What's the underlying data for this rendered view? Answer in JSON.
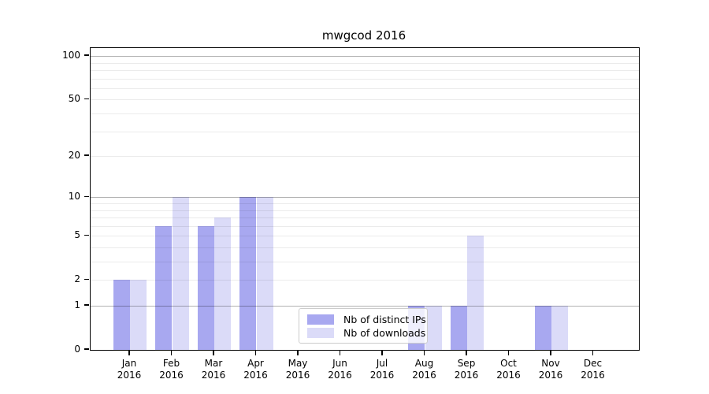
{
  "chart_data": {
    "type": "bar",
    "title": "mwgcod 2016",
    "categories": [
      "Jan",
      "Feb",
      "Mar",
      "Apr",
      "May",
      "Jun",
      "Jul",
      "Aug",
      "Sep",
      "Oct",
      "Nov",
      "Dec"
    ],
    "category_sublabel": "2016",
    "series": [
      {
        "name": "Nb of distinct IPs",
        "color": "#a8a8f0",
        "values": [
          2,
          6,
          6,
          10,
          0,
          0,
          0,
          1,
          1,
          0,
          1,
          0
        ]
      },
      {
        "name": "Nb of downloads",
        "color": "#dbdbf8",
        "values": [
          2,
          10,
          7,
          10,
          0,
          0,
          0,
          1,
          5,
          0,
          1,
          0
        ]
      }
    ],
    "yscale": "log1p",
    "ylim": [
      0,
      113.6
    ],
    "yticks": [
      0,
      1,
      2,
      5,
      10,
      20,
      50,
      100
    ],
    "major_gridlines": [
      1,
      10,
      100
    ],
    "minor_gridlines": [
      2,
      3,
      4,
      5,
      6,
      7,
      8,
      9,
      20,
      30,
      40,
      50,
      60,
      70,
      80,
      90
    ],
    "grid": true,
    "legend_position": "lower center",
    "xlabel": "",
    "ylabel": ""
  }
}
